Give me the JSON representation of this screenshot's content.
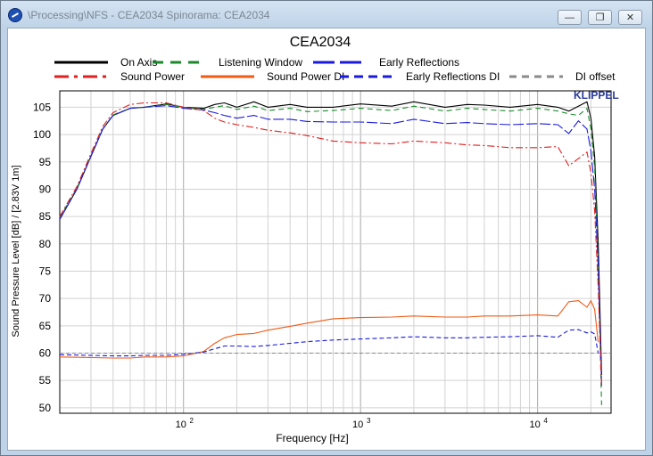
{
  "window": {
    "title": "\\Processing\\NFS - CEA2034 Spinorama: CEA2034",
    "minimize_glyph": "—",
    "restore_glyph": "❐",
    "close_glyph": "✕"
  },
  "brand": "KLIPPEL",
  "chart_data": {
    "type": "line",
    "title": "CEA2034",
    "xlabel": "Frequency [Hz]",
    "ylabel": "Sound Pressure Level [dB]  / [2.83V 1m]",
    "xscale": "log",
    "xlim": [
      20,
      26000
    ],
    "ylim": [
      49,
      108
    ],
    "yticks": [
      50,
      55,
      60,
      65,
      70,
      75,
      80,
      85,
      90,
      95,
      100,
      105
    ],
    "xtick_labels": [
      {
        "value": 100,
        "base": "10",
        "exp": "2"
      },
      {
        "value": 1000,
        "base": "10",
        "exp": "3"
      },
      {
        "value": 10000,
        "base": "10",
        "exp": "4"
      }
    ],
    "grid": true,
    "legend_position": "top",
    "series": [
      {
        "name": "On Axis",
        "color": "#000000",
        "dash": "solid",
        "x": [
          20,
          25,
          30,
          35,
          40,
          50,
          60,
          80,
          100,
          130,
          150,
          170,
          200,
          250,
          300,
          400,
          500,
          700,
          1000,
          1500,
          2000,
          3000,
          4000,
          5000,
          7000,
          10000,
          13000,
          15000,
          17000,
          19000,
          20000,
          21000,
          22000,
          23000
        ],
        "y": [
          84.5,
          90,
          96,
          101,
          103.5,
          104.8,
          105,
          105.6,
          105,
          104.8,
          105.5,
          105.8,
          105,
          106,
          105,
          105.5,
          105,
          105,
          105.6,
          105.2,
          106,
          105,
          105.5,
          105.4,
          105,
          105.5,
          105,
          104.3,
          105.2,
          106,
          103,
          96,
          80,
          56
        ]
      },
      {
        "name": "Listening Window",
        "color": "#1a8a2a",
        "dash": "6,4",
        "x": [
          20,
          25,
          30,
          35,
          40,
          50,
          60,
          80,
          100,
          130,
          150,
          170,
          200,
          250,
          300,
          400,
          500,
          700,
          1000,
          1500,
          2000,
          3000,
          4000,
          5000,
          7000,
          10000,
          13000,
          15000,
          17000,
          19000,
          20000,
          21000,
          22000,
          23000
        ],
        "y": [
          84.8,
          90.2,
          96,
          101,
          103.6,
          104.8,
          105,
          105.5,
          105,
          104.6,
          105,
          105.3,
          104.6,
          105.2,
          104.4,
          104.8,
          104.2,
          104.4,
          104.8,
          104.4,
          105.2,
          104.3,
          104.8,
          104.6,
          104.3,
          104.8,
          104.3,
          103.8,
          103.5,
          104.8,
          101,
          94,
          76,
          50.5
        ]
      },
      {
        "name": "Early Reflections",
        "color": "#1a1adc",
        "dash": "12,3",
        "x": [
          20,
          25,
          30,
          35,
          40,
          50,
          60,
          80,
          100,
          130,
          150,
          170,
          200,
          250,
          300,
          400,
          500,
          700,
          1000,
          1500,
          2000,
          3000,
          4000,
          5000,
          7000,
          10000,
          13000,
          15000,
          17000,
          19000,
          20000,
          21000,
          22000,
          23000
        ],
        "y": [
          84.5,
          90,
          96,
          101,
          103.5,
          104.8,
          105,
          105.3,
          104.8,
          104.5,
          104,
          103.5,
          103,
          103.5,
          102.8,
          102.8,
          102.4,
          102.3,
          102.3,
          102,
          102.8,
          102,
          102.2,
          102,
          101.8,
          102,
          101.8,
          100.2,
          102.5,
          101,
          97,
          90,
          76,
          54
        ]
      },
      {
        "name": "Sound Power",
        "color": "#e02020",
        "dash": "8,3,2,3",
        "x": [
          20,
          25,
          30,
          35,
          40,
          50,
          60,
          80,
          100,
          130,
          150,
          170,
          200,
          250,
          300,
          400,
          500,
          700,
          1000,
          1500,
          2000,
          3000,
          4000,
          5000,
          7000,
          10000,
          13000,
          15000,
          17000,
          19000,
          20000,
          21000,
          22000,
          23000
        ],
        "y": [
          85,
          90.5,
          96.5,
          101.5,
          104,
          105.5,
          105.8,
          105.8,
          105,
          104.4,
          103,
          102.3,
          101.8,
          101.3,
          100.8,
          100.3,
          99.8,
          98.8,
          98.5,
          98.3,
          98.8,
          98.5,
          98.1,
          98,
          97.6,
          97.6,
          97.8,
          94.3,
          95.6,
          96.8,
          93,
          86,
          72,
          54
        ]
      },
      {
        "name": "Sound Power DI",
        "color": "#f05a14",
        "dash": "solid",
        "x": [
          20,
          30,
          40,
          50,
          60,
          80,
          100,
          130,
          150,
          170,
          200,
          250,
          300,
          400,
          500,
          700,
          1000,
          1500,
          2000,
          3000,
          4000,
          5000,
          7000,
          10000,
          13000,
          15000,
          17000,
          19000,
          20000,
          21000,
          22000
        ],
        "y": [
          59.3,
          59.2,
          59.1,
          59.1,
          59.3,
          59.3,
          59.5,
          60.3,
          61.8,
          62.8,
          63.4,
          63.6,
          64.2,
          64.9,
          65.5,
          66.3,
          66.5,
          66.6,
          66.8,
          66.6,
          66.6,
          66.8,
          66.8,
          67,
          66.8,
          69.4,
          69.6,
          68.4,
          69.6,
          68,
          62
        ]
      },
      {
        "name": "Early Reflections DI",
        "color": "#1a1adc",
        "dash": "5,3",
        "x": [
          20,
          30,
          40,
          50,
          60,
          80,
          100,
          130,
          150,
          170,
          200,
          250,
          300,
          400,
          500,
          700,
          1000,
          1500,
          2000,
          3000,
          4000,
          5000,
          7000,
          10000,
          13000,
          15000,
          17000,
          19000,
          20000,
          21000,
          22000
        ],
        "y": [
          59.7,
          59.6,
          59.5,
          59.5,
          59.6,
          59.6,
          59.8,
          60.2,
          60.8,
          61.3,
          61.3,
          61.2,
          61.4,
          61.8,
          62.1,
          62.4,
          62.6,
          62.8,
          63,
          62.8,
          62.8,
          62.9,
          63,
          63.2,
          62.9,
          64.2,
          64.3,
          63.7,
          63.9,
          63.5,
          60
        ]
      },
      {
        "name": "DI offset",
        "color": "#8a8a8a",
        "dash": "4,3",
        "x": [
          20,
          26000
        ],
        "y": [
          60,
          60
        ]
      }
    ]
  }
}
